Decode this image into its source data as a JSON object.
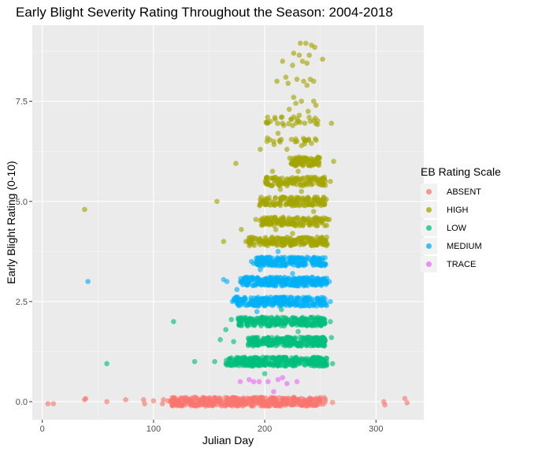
{
  "chart_data": {
    "type": "scatter",
    "title": "Early Blight Severity Rating Throughout the Season: 2004-2018",
    "xlabel": "Julian Day",
    "ylabel": "Early Blight Rating (0-10)",
    "xlim": [
      -9,
      343
    ],
    "ylim": [
      -0.45,
      9.4
    ],
    "x_ticks": [
      0,
      100,
      200,
      300
    ],
    "y_ticks": [
      0.0,
      2.5,
      5.0,
      7.5
    ],
    "y_tick_labels": [
      "0.0",
      "2.5",
      "5.0",
      "7.5"
    ],
    "grid": true,
    "legend_position": "right",
    "legend_title": "EB Rating Scale",
    "series": [
      {
        "name": "ABSENT",
        "color": "#F8766D"
      },
      {
        "name": "HIGH",
        "color": "#A3A500"
      },
      {
        "name": "LOW",
        "color": "#00BF7D"
      },
      {
        "name": "MEDIUM",
        "color": "#00B0F6"
      },
      {
        "name": "TRACE",
        "color": "#E76BF3"
      }
    ],
    "points": [
      {
        "s": 1,
        "x": 38,
        "y": 4.8
      },
      {
        "s": 1,
        "x": 157,
        "y": 5.0
      },
      {
        "s": 1,
        "x": 174,
        "y": 5.95
      },
      {
        "s": 1,
        "x": 163,
        "y": 4.0
      },
      {
        "s": 1,
        "x": 179,
        "y": 4.3
      },
      {
        "s": 1,
        "x": 262,
        "y": 6.0
      },
      {
        "s": 1,
        "x": 260,
        "y": 6.95
      },
      {
        "s": 1,
        "x": 259,
        "y": 5.5
      },
      {
        "s": 1,
        "x": 258,
        "y": 4.55
      },
      {
        "s": 1,
        "x": 237,
        "y": 8.95
      },
      {
        "s": 1,
        "x": 232,
        "y": 8.95
      },
      {
        "s": 1,
        "x": 242,
        "y": 8.9
      },
      {
        "s": 1,
        "x": 245,
        "y": 8.85
      },
      {
        "s": 1,
        "x": 226,
        "y": 8.7
      },
      {
        "s": 1,
        "x": 231,
        "y": 8.65
      },
      {
        "s": 1,
        "x": 240,
        "y": 8.65
      },
      {
        "s": 1,
        "x": 252,
        "y": 8.55
      },
      {
        "s": 1,
        "x": 216,
        "y": 8.5
      },
      {
        "s": 1,
        "x": 234,
        "y": 8.5
      },
      {
        "s": 1,
        "x": 238,
        "y": 8.45
      },
      {
        "s": 1,
        "x": 225,
        "y": 8.4
      },
      {
        "s": 1,
        "x": 219,
        "y": 8.1
      },
      {
        "s": 1,
        "x": 229,
        "y": 8.05
      },
      {
        "s": 1,
        "x": 235,
        "y": 8.0
      },
      {
        "s": 1,
        "x": 241,
        "y": 8.05
      },
      {
        "s": 1,
        "x": 244,
        "y": 8.0
      },
      {
        "s": 1,
        "x": 211,
        "y": 8.0
      },
      {
        "s": 1,
        "x": 221,
        "y": 7.95
      },
      {
        "s": 1,
        "x": 238,
        "y": 7.9
      },
      {
        "s": 1,
        "x": 226,
        "y": 7.6
      },
      {
        "s": 1,
        "x": 228,
        "y": 7.45
      },
      {
        "s": 1,
        "x": 222,
        "y": 7.3
      },
      {
        "s": 1,
        "x": 233,
        "y": 7.5
      },
      {
        "s": 1,
        "x": 244,
        "y": 7.5
      },
      {
        "s": 1,
        "x": 246,
        "y": 7.4
      },
      {
        "s": 1,
        "x": 239,
        "y": 7.25
      },
      {
        "s": 1,
        "x": 231,
        "y": 7.15
      },
      {
        "s": 1,
        "x": 224,
        "y": 7.05
      },
      {
        "s": 1,
        "x": 205,
        "y": 7.0
      },
      {
        "s": 1,
        "x": 202,
        "y": 6.95
      },
      {
        "s": 1,
        "x": 216,
        "y": 6.95
      },
      {
        "s": 1,
        "x": 230,
        "y": 7.0
      },
      {
        "s": 1,
        "x": 236,
        "y": 6.95
      },
      {
        "s": 1,
        "x": 241,
        "y": 7.0
      },
      {
        "s": 1,
        "x": 212,
        "y": 6.7
      },
      {
        "s": 1,
        "x": 202,
        "y": 6.5
      },
      {
        "s": 1,
        "x": 208,
        "y": 6.5
      },
      {
        "s": 1,
        "x": 224,
        "y": 6.55
      },
      {
        "s": 1,
        "x": 229,
        "y": 6.5
      },
      {
        "s": 1,
        "x": 236,
        "y": 6.5
      },
      {
        "s": 1,
        "x": 242,
        "y": 6.45
      },
      {
        "s": 1,
        "x": 196,
        "y": 6.3
      },
      {
        "s": 1,
        "x": 220,
        "y": 6.3
      },
      {
        "s": 1,
        "x": 244,
        "y": 6.05
      },
      {
        "s": 1,
        "x": 207,
        "y": 5.75
      },
      {
        "s": 1,
        "x": 230,
        "y": 5.75
      },
      {
        "s": 1,
        "x": 214,
        "y": 5.3
      },
      {
        "s": 1,
        "x": 233,
        "y": 5.25
      },
      {
        "s": 1,
        "x": 197,
        "y": 5.0
      },
      {
        "s": 1,
        "x": 244,
        "y": 4.75
      },
      {
        "s": 1,
        "x": 192,
        "y": 4.55
      },
      {
        "s": 1,
        "x": 210,
        "y": 4.3
      },
      {
        "s": 1,
        "x": 186,
        "y": 4.0
      },
      {
        "s": 1,
        "x": 225,
        "y": 4.2
      },
      {
        "s": 1,
        "x": 183,
        "y": 4.0
      },
      {
        "s": 3,
        "x": 41,
        "y": 3.0
      },
      {
        "s": 3,
        "x": 163,
        "y": 3.05
      },
      {
        "s": 3,
        "x": 166,
        "y": 3.0
      },
      {
        "s": 3,
        "x": 188,
        "y": 3.5
      },
      {
        "s": 3,
        "x": 190,
        "y": 3.45
      },
      {
        "s": 3,
        "x": 258,
        "y": 3.0
      },
      {
        "s": 3,
        "x": 196,
        "y": 3.3
      },
      {
        "s": 3,
        "x": 178,
        "y": 2.55
      },
      {
        "s": 3,
        "x": 259,
        "y": 2.5
      },
      {
        "s": 3,
        "x": 171,
        "y": 2.5
      },
      {
        "s": 3,
        "x": 212,
        "y": 3.75
      },
      {
        "s": 3,
        "x": 225,
        "y": 3.2
      },
      {
        "s": 3,
        "x": 193,
        "y": 2.25
      },
      {
        "s": 3,
        "x": 175,
        "y": 2.8
      },
      {
        "s": 2,
        "x": 58,
        "y": 0.95
      },
      {
        "s": 2,
        "x": 118,
        "y": 2.0
      },
      {
        "s": 2,
        "x": 137,
        "y": 1.0
      },
      {
        "s": 2,
        "x": 155,
        "y": 1.0
      },
      {
        "s": 2,
        "x": 160,
        "y": 1.55
      },
      {
        "s": 2,
        "x": 165,
        "y": 1.8
      },
      {
        "s": 2,
        "x": 170,
        "y": 2.05
      },
      {
        "s": 2,
        "x": 260,
        "y": 1.6
      },
      {
        "s": 2,
        "x": 261,
        "y": 0.95
      },
      {
        "s": 2,
        "x": 259,
        "y": 2.0
      },
      {
        "s": 2,
        "x": 172,
        "y": 1.5
      },
      {
        "s": 2,
        "x": 200,
        "y": 0.7
      },
      {
        "s": 2,
        "x": 215,
        "y": 2.3
      },
      {
        "s": 2,
        "x": 230,
        "y": 1.75
      },
      {
        "s": 4,
        "x": 178,
        "y": 0.5
      },
      {
        "s": 4,
        "x": 186,
        "y": 0.55
      },
      {
        "s": 4,
        "x": 195,
        "y": 0.5
      },
      {
        "s": 4,
        "x": 203,
        "y": 0.5
      },
      {
        "s": 4,
        "x": 212,
        "y": 0.55
      },
      {
        "s": 4,
        "x": 220,
        "y": 0.45
      },
      {
        "s": 4,
        "x": 229,
        "y": 0.5
      },
      {
        "s": 4,
        "x": 208,
        "y": 0.25
      },
      {
        "s": 4,
        "x": 190,
        "y": 0.5
      },
      {
        "s": 4,
        "x": 216,
        "y": 0.6
      },
      {
        "s": 0,
        "x": 5,
        "y": -0.05
      },
      {
        "s": 0,
        "x": 10,
        "y": -0.05
      },
      {
        "s": 0,
        "x": 38,
        "y": 0.05
      },
      {
        "s": 0,
        "x": 39,
        "y": 0.08
      },
      {
        "s": 0,
        "x": 58,
        "y": 0.0
      },
      {
        "s": 0,
        "x": 75,
        "y": 0.05
      },
      {
        "s": 0,
        "x": 91,
        "y": 0.05
      },
      {
        "s": 0,
        "x": 92,
        "y": -0.05
      },
      {
        "s": 0,
        "x": 100,
        "y": 0.02
      },
      {
        "s": 0,
        "x": 108,
        "y": -0.05
      },
      {
        "s": 0,
        "x": 109,
        "y": 0.05
      },
      {
        "s": 0,
        "x": 113,
        "y": 0.02
      },
      {
        "s": 0,
        "x": 118,
        "y": -0.02
      },
      {
        "s": 0,
        "x": 124,
        "y": 0.05
      },
      {
        "s": 0,
        "x": 130,
        "y": 0.0
      },
      {
        "s": 0,
        "x": 137,
        "y": -0.02
      },
      {
        "s": 0,
        "x": 141,
        "y": 0.05
      },
      {
        "s": 0,
        "x": 261,
        "y": -0.02
      },
      {
        "s": 0,
        "x": 307,
        "y": 0.0
      },
      {
        "s": 0,
        "x": 308,
        "y": -0.08
      },
      {
        "s": 0,
        "x": 326,
        "y": 0.08
      },
      {
        "s": 0,
        "x": 328,
        "y": -0.03
      }
    ],
    "clusters": [
      {
        "s": 1,
        "x_range": [
          222,
          250
        ],
        "y_levels": [
          6.0
        ],
        "n": 70
      },
      {
        "s": 1,
        "x_range": [
          200,
          255
        ],
        "y_levels": [
          5.5
        ],
        "n": 110
      },
      {
        "s": 1,
        "x_range": [
          195,
          256
        ],
        "y_levels": [
          5.0
        ],
        "n": 130
      },
      {
        "s": 1,
        "x_range": [
          196,
          257
        ],
        "y_levels": [
          4.5
        ],
        "n": 130
      },
      {
        "s": 1,
        "x_range": [
          185,
          258
        ],
        "y_levels": [
          4.0
        ],
        "n": 190
      },
      {
        "s": 1,
        "x_range": [
          200,
          248
        ],
        "y_levels": [
          6.5,
          7.0
        ],
        "n": 40
      },
      {
        "s": 3,
        "x_range": [
          192,
          255
        ],
        "y_levels": [
          3.5
        ],
        "n": 190
      },
      {
        "s": 3,
        "x_range": [
          178,
          257
        ],
        "y_levels": [
          3.0
        ],
        "n": 240
      },
      {
        "s": 3,
        "x_range": [
          172,
          256
        ],
        "y_levels": [
          2.5
        ],
        "n": 240
      },
      {
        "s": 2,
        "x_range": [
          176,
          255
        ],
        "y_levels": [
          2.0
        ],
        "n": 240
      },
      {
        "s": 2,
        "x_range": [
          185,
          255
        ],
        "y_levels": [
          1.5
        ],
        "n": 240
      },
      {
        "s": 2,
        "x_range": [
          165,
          256
        ],
        "y_levels": [
          1.0
        ],
        "n": 280
      },
      {
        "s": 0,
        "x_range": [
          115,
          255
        ],
        "y_levels": [
          0.0
        ],
        "n": 420
      }
    ]
  }
}
